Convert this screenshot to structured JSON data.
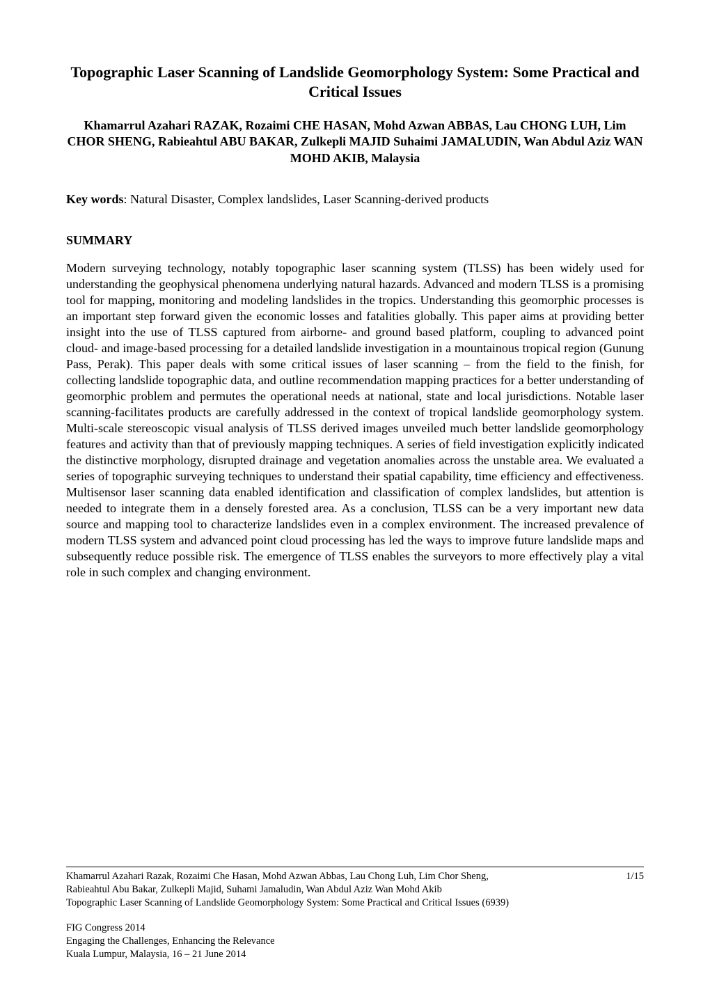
{
  "title": "Topographic Laser Scanning of Landslide Geomorphology System: Some Practical and Critical Issues",
  "authors": "Khamarrul Azahari RAZAK, Rozaimi CHE HASAN, Mohd Azwan ABBAS, Lau CHONG LUH, Lim CHOR SHENG, Rabieahtul ABU BAKAR, Zulkepli MAJID Suhaimi JAMALUDIN, Wan Abdul Aziz WAN MOHD AKIB, Malaysia",
  "keywords_label": "Key words",
  "keywords_text": ": Natural Disaster, Complex landslides, Laser Scanning-derived products",
  "summary_heading": "SUMMARY",
  "summary_body": "Modern surveying technology, notably topographic laser scanning system (TLSS) has been widely used for understanding the geophysical phenomena underlying natural hazards. Advanced and modern TLSS is a promising tool for mapping, monitoring and modeling landslides in the tropics. Understanding this geomorphic processes is an important step forward given the economic losses and fatalities globally. This paper aims at providing better insight into the use of TLSS captured from airborne- and ground based platform, coupling to advanced point cloud- and image-based processing for a detailed landslide investigation in a mountainous tropical region (Gunung Pass, Perak). This paper deals with some critical issues of laser scanning – from the field to the finish, for collecting landslide topographic data, and outline recommendation mapping practices for a better understanding of geomorphic problem and permutes the operational needs at national, state and local jurisdictions. Notable laser scanning-facilitates products are carefully addressed in the context of tropical landslide geomorphology system. Multi-scale stereoscopic visual analysis of TLSS derived images unveiled much better landslide geomorphology features and activity than that of previously mapping techniques. A series of field investigation explicitly indicated the distinctive morphology, disrupted drainage and vegetation anomalies across the unstable area. We evaluated a series of topographic surveying techniques to understand their spatial capability, time efficiency and effectiveness. Multisensor laser scanning data enabled identification and classification of complex landslides, but attention is needed to integrate them in a densely forested area. As a conclusion, TLSS can be a very important new data source and mapping tool to characterize landslides even in a complex environment. The increased prevalence of modern TLSS system and advanced point cloud processing has led the ways to improve future landslide maps and subsequently reduce possible risk. The emergence of TLSS enables the surveyors to more effectively play a vital role in such complex and changing environment.",
  "footer": {
    "citation_line1": "Khamarrul Azahari Razak, Rozaimi Che Hasan, Mohd Azwan Abbas, Lau Chong Luh, Lim Chor Sheng,",
    "citation_line2": "Rabieahtul Abu Bakar, Zulkepli Majid, Suhami Jamaludin, Wan Abdul Aziz Wan Mohd Akib",
    "citation_line3": "Topographic Laser Scanning of Landslide Geomorphology System: Some Practical and Critical Issues (6939)",
    "page_number": "1/15",
    "conference_line1": "FIG Congress 2014",
    "conference_line2": "Engaging the Challenges, Enhancing the Relevance",
    "conference_line3": "Kuala Lumpur, Malaysia, 16 – 21 June 2014"
  }
}
